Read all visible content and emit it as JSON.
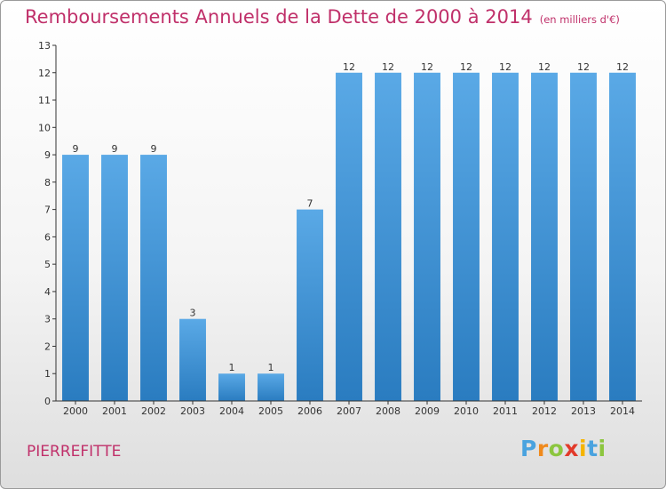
{
  "title": "Remboursements Annuels de la Dette de 2000 à 2014",
  "unit_label": "(en milliers d'€)",
  "commune": "PIERREFITTE",
  "brand": {
    "letters": [
      "P",
      "r",
      "o",
      "x",
      "i",
      "t",
      "i"
    ],
    "colors": [
      "#4aa3df",
      "#f08a1c",
      "#8cc63f",
      "#e23a2a",
      "#f5b400",
      "#4aa3df",
      "#8cc63f"
    ]
  },
  "colors": {
    "bar_top": "#5aa9e6",
    "bar_bottom": "#2a7cc0",
    "axis": "#333333",
    "text": "#333333",
    "title": "#c0306a"
  },
  "chart_data": {
    "type": "bar",
    "title": "Remboursements Annuels de la Dette de 2000 à 2014",
    "categories": [
      "2000",
      "2001",
      "2002",
      "2003",
      "2004",
      "2005",
      "2006",
      "2007",
      "2008",
      "2009",
      "2010",
      "2011",
      "2012",
      "2013",
      "2014"
    ],
    "values": [
      9,
      9,
      9,
      3,
      1,
      1,
      7,
      12,
      12,
      12,
      12,
      12,
      12,
      12,
      12
    ],
    "ylim": [
      0,
      13
    ],
    "yticks": [
      0,
      1,
      2,
      3,
      4,
      5,
      6,
      7,
      8,
      9,
      10,
      11,
      12,
      13
    ],
    "data_labels": true,
    "grid": false,
    "legend": "none"
  }
}
